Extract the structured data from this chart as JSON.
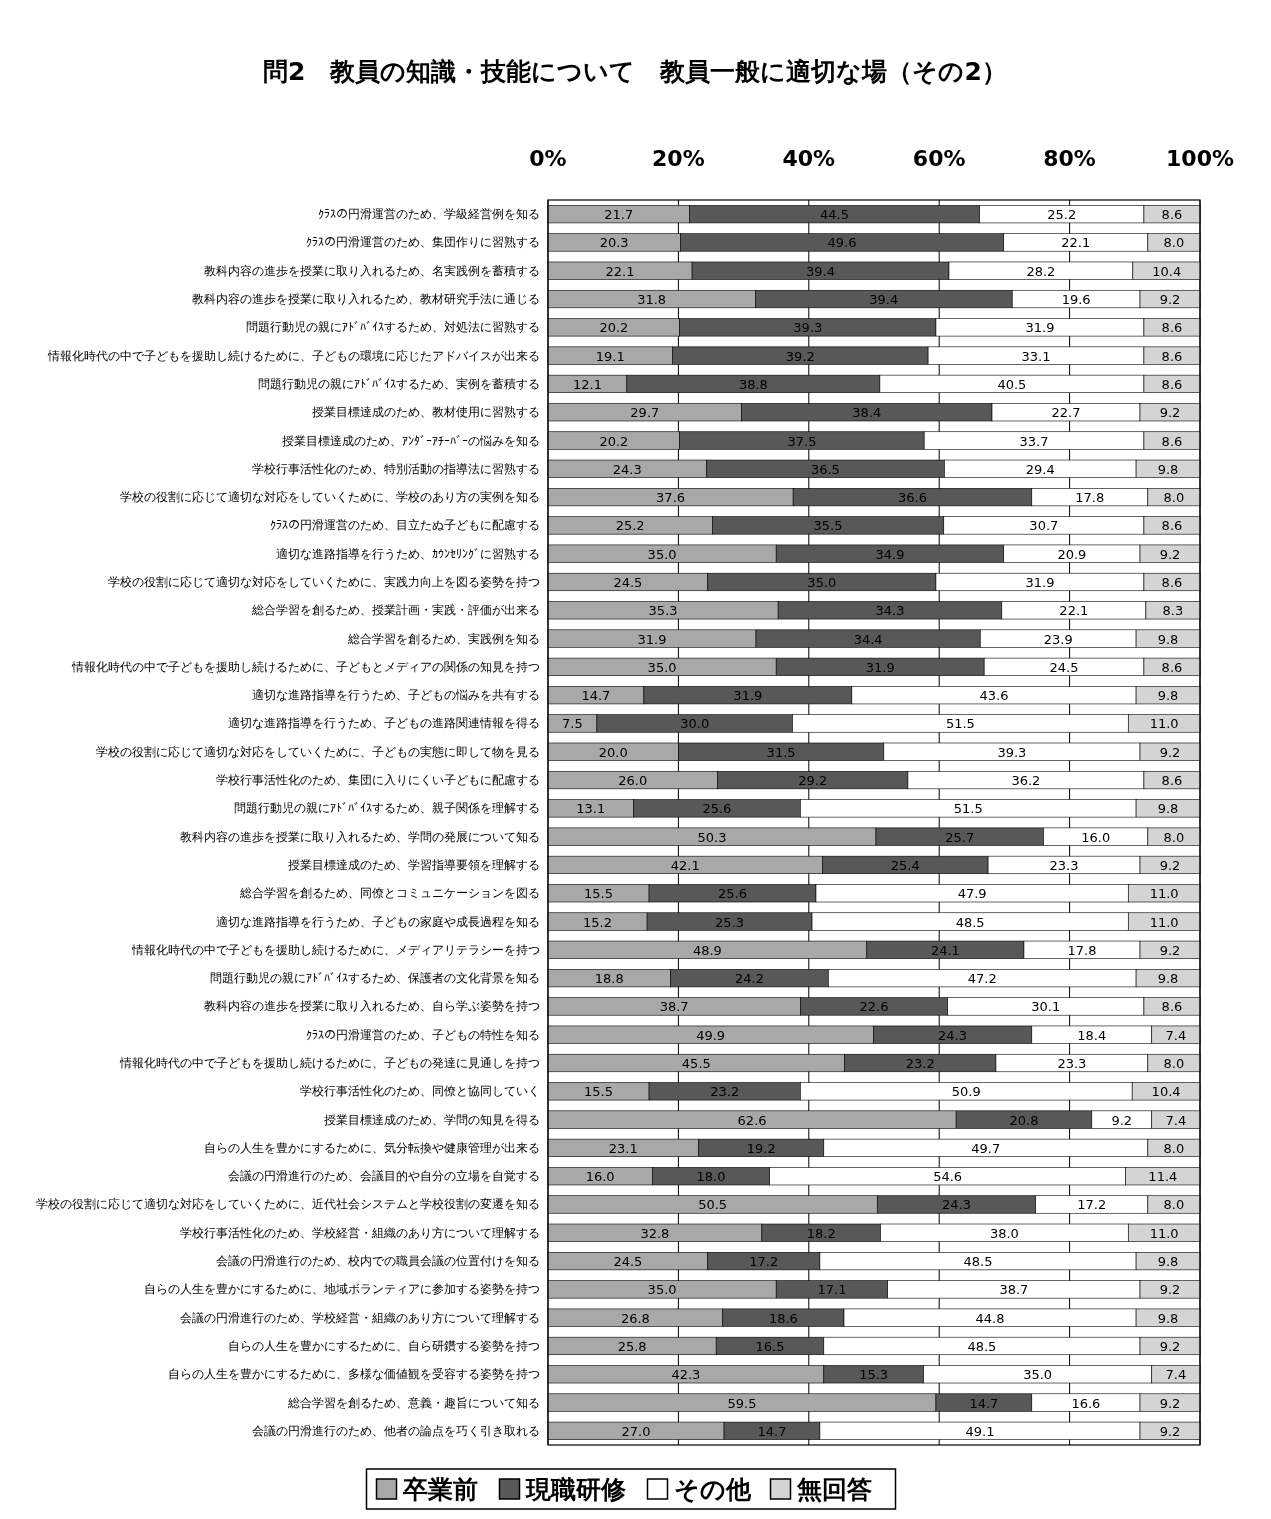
{
  "chart_data": {
    "type": "bar",
    "orientation": "horizontal",
    "stacked": true,
    "title": "問2　教員の知識・技能について　教員一般に適切な場（その2）",
    "categories": [
      "ｸﾗｽの円滑運営のため、学級経営例を知る",
      "ｸﾗｽの円滑運営のため、集団作りに習熟する",
      "教科内容の進歩を授業に取り入れるため、名実践例を蓄積する",
      "教科内容の進歩を授業に取り入れるため、教材研究手法に通じる",
      "問題行動児の親にｱﾄﾞﾊﾞｲｽするため、対処法に習熟する",
      "情報化時代の中で子どもを援助し続けるために、子どもの環境に応じたアドバイスが出来る",
      "問題行動児の親にｱﾄﾞﾊﾞｲｽするため、実例を蓄積する",
      "授業目標達成のため、教材使用に習熟する",
      "授業目標達成のため、ｱﾝﾀﾞｰｱﾁｰﾊﾞｰの悩みを知る",
      "学校行事活性化のため、特別活動の指導法に習熟する",
      "学校の役割に応じて適切な対応をしていくために、学校のあり方の実例を知る",
      "ｸﾗｽの円滑運営のため、目立たぬ子どもに配慮する",
      "適切な進路指導を行うため、ｶｳﾝｾﾘﾝｸﾞに習熟する",
      "学校の役割に応じて適切な対応をしていくために、実践力向上を図る姿勢を持つ",
      "総合学習を創るため、授業計画・実践・評価が出来る",
      "総合学習を創るため、実践例を知る",
      "情報化時代の中で子どもを援助し続けるために、子どもとメディアの関係の知見を持つ",
      "適切な進路指導を行うため、子どもの悩みを共有する",
      "適切な進路指導を行うため、子どもの進路関連情報を得る",
      "学校の役割に応じて適切な対応をしていくために、子どもの実態に即して物を見る",
      "学校行事活性化のため、集団に入りにくい子どもに配慮する",
      "問題行動児の親にｱﾄﾞﾊﾞｲｽするため、親子関係を理解する",
      "教科内容の進歩を授業に取り入れるため、学問の発展について知る",
      "授業目標達成のため、学習指導要領を理解する",
      "総合学習を創るため、同僚とコミュニケーションを図る",
      "適切な進路指導を行うため、子どもの家庭や成長過程を知る",
      "情報化時代の中で子どもを援助し続けるために、メディアリテラシーを持つ",
      "問題行動児の親にｱﾄﾞﾊﾞｲｽするため、保護者の文化背景を知る",
      "教科内容の進歩を授業に取り入れるため、自ら学ぶ姿勢を持つ",
      "ｸﾗｽの円滑運営のため、子どもの特性を知る",
      "情報化時代の中で子どもを援助し続けるために、子どもの発達に見通しを持つ",
      "学校行事活性化のため、同僚と協同していく",
      "授業目標達成のため、学問の知見を得る",
      "自らの人生を豊かにするために、気分転換や健康管理が出来る",
      "会議の円滑進行のため、会議目的や自分の立場を自覚する",
      "学校の役割に応じて適切な対応をしていくために、近代社会システムと学校役割の変遷を知る",
      "学校行事活性化のため、学校経営・組織のあり方について理解する",
      "会議の円滑進行のため、校内での職員会議の位置付けを知る",
      "自らの人生を豊かにするために、地域ボランティアに参加する姿勢を持つ",
      "会議の円滑進行のため、学校経営・組織のあり方について理解する",
      "自らの人生を豊かにするために、自ら研鑽する姿勢を持つ",
      "自らの人生を豊かにするために、多様な価値観を受容する姿勢を持つ",
      "総合学習を創るため、意義・趣旨について知る",
      "会議の円滑進行のため、他者の論点を巧く引き取れる"
    ],
    "series": [
      {
        "name": "卒業前",
        "color": "#a8a8a8",
        "values": [
          21.7,
          20.3,
          22.1,
          31.8,
          20.2,
          19.1,
          12.1,
          29.7,
          20.2,
          24.3,
          37.6,
          25.2,
          35.0,
          24.5,
          35.3,
          31.9,
          35.0,
          14.7,
          7.5,
          20.0,
          26.0,
          13.1,
          50.3,
          42.1,
          15.5,
          15.2,
          48.9,
          18.8,
          38.7,
          49.9,
          45.5,
          15.5,
          62.6,
          23.1,
          16.0,
          50.5,
          32.8,
          24.5,
          35.0,
          26.8,
          25.8,
          42.3,
          59.5,
          27.0
        ],
        "value_labels": [
          "21.7",
          "20.3",
          "22.1",
          "31.8",
          "20.2",
          "19.1",
          "12.1",
          "29.7",
          "20.2",
          "24.3",
          "37.6",
          "25.2",
          "35.0",
          "24.5",
          "35.3",
          "31.9",
          "35.0",
          "14.7",
          "7.5",
          "20.0",
          "26.0",
          "13.1",
          "50.3",
          "42.1",
          "15.5",
          "15.2",
          "48.9",
          "18.8",
          "38.7",
          "49.9",
          "45.5",
          "15.5",
          "62.6",
          "23.1",
          "16.0",
          "50.5",
          "32.8",
          "24.5",
          "35.0",
          "26.8",
          "25.8",
          "42.3",
          "59.5",
          "27.0"
        ]
      },
      {
        "name": "現職研修",
        "color": "#585858",
        "values": [
          44.5,
          49.6,
          39.4,
          39.4,
          39.3,
          39.2,
          38.8,
          38.4,
          37.5,
          36.5,
          36.6,
          35.5,
          34.9,
          35.0,
          34.3,
          34.4,
          31.9,
          31.9,
          30.0,
          31.5,
          29.2,
          25.6,
          25.7,
          25.4,
          25.6,
          25.3,
          24.1,
          24.2,
          22.6,
          24.3,
          23.2,
          23.2,
          20.8,
          19.2,
          18.0,
          24.3,
          18.2,
          17.2,
          17.1,
          18.6,
          16.5,
          15.3,
          14.7,
          14.7
        ],
        "value_labels": [
          "44.5",
          "49.6",
          "39.4",
          "39.4",
          "39.3",
          "39.2",
          "38.8",
          "38.4",
          "37.5",
          "36.5",
          "36.6",
          "35.5",
          "34.9",
          "35.0",
          "34.3",
          "34.4",
          "31.9",
          "31.9",
          "30.0",
          "31.5",
          "29.2",
          "25.6",
          "25.7",
          "25.4",
          "25.6",
          "25.3",
          "24.1",
          "24.2",
          "22.6",
          "24.3",
          "23.2",
          "23.2",
          "20.8",
          "19.2",
          "18.0",
          "24.3",
          "18.2",
          "17.2",
          "17.1",
          "18.6",
          "16.5",
          "15.3",
          "14.7",
          "14.7"
        ]
      },
      {
        "name": "その他",
        "color": "#ffffff",
        "values": [
          25.2,
          22.1,
          28.2,
          19.6,
          31.9,
          33.1,
          40.5,
          22.7,
          33.7,
          29.4,
          17.8,
          30.7,
          20.9,
          31.9,
          22.1,
          23.9,
          24.5,
          43.6,
          51.5,
          39.3,
          36.2,
          51.5,
          16.0,
          23.3,
          47.9,
          48.5,
          17.8,
          47.2,
          30.1,
          18.4,
          23.3,
          50.9,
          9.2,
          49.7,
          54.6,
          17.2,
          38.0,
          48.5,
          38.7,
          44.8,
          48.5,
          35.0,
          16.6,
          49.1
        ],
        "value_labels": [
          "25.2",
          "22.1",
          "28.2",
          "19.6",
          "31.9",
          "33.1",
          "40.5",
          "22.7",
          "33.7",
          "29.4",
          "17.8",
          "30.7",
          "20.9",
          "31.9",
          "22.1",
          "23.9",
          "24.5",
          "43.6",
          "51.5",
          "39.3",
          "36.2",
          "51.5",
          "16.0",
          "23.3",
          "47.9",
          "48.5",
          "17.8",
          "47.2",
          "30.1",
          "18.4",
          "23.3",
          "50.9",
          "9.2",
          "49.7",
          "54.6",
          "17.2",
          "38.0",
          "48.5",
          "38.7",
          "44.8",
          "48.5",
          "35.0",
          "16.6",
          "49.1"
        ]
      },
      {
        "name": "無回答",
        "color": "#d4d4d4",
        "values": [
          8.6,
          8.0,
          10.4,
          9.2,
          8.6,
          8.6,
          8.6,
          9.2,
          8.6,
          9.8,
          8.0,
          8.6,
          9.2,
          8.6,
          8.3,
          9.8,
          8.6,
          9.8,
          11.0,
          9.2,
          8.6,
          9.8,
          8.0,
          9.2,
          11.0,
          11.0,
          9.2,
          9.8,
          8.6,
          7.4,
          8.0,
          10.4,
          7.4,
          8.0,
          11.4,
          8.0,
          11.0,
          9.8,
          9.2,
          9.8,
          9.2,
          7.4,
          9.2,
          9.2
        ],
        "value_labels": [
          "8.6",
          "8.0",
          "10.4",
          "9.2",
          "8.6",
          "8.6",
          "8.6",
          "9.2",
          "8.6",
          "9.8",
          "8.0",
          "8.6",
          "9.2",
          "8.6",
          "8.3",
          "9.8",
          "8.6",
          "9.8",
          "11.0",
          "9.2",
          "8.6",
          "9.8",
          "8.0",
          "9.2",
          "11.0",
          "11.0",
          "9.2",
          "9.8",
          "8.6",
          "7.4",
          "8.0",
          "10.4",
          "7.4",
          "8.0",
          "11.4",
          "8.0",
          "11.0",
          "9.8",
          "9.2",
          "9.8",
          "9.2",
          "7.4",
          "9.2",
          "9.2"
        ]
      }
    ],
    "xlim": [
      0,
      100
    ],
    "xticks": [
      {
        "value": 0,
        "label": "0%"
      },
      {
        "value": 20,
        "label": "20%"
      },
      {
        "value": 40,
        "label": "40%"
      },
      {
        "value": 60,
        "label": "60%"
      },
      {
        "value": 80,
        "label": "80%"
      },
      {
        "value": 100,
        "label": "100%"
      }
    ],
    "grid": "x",
    "legend": "bottom"
  }
}
